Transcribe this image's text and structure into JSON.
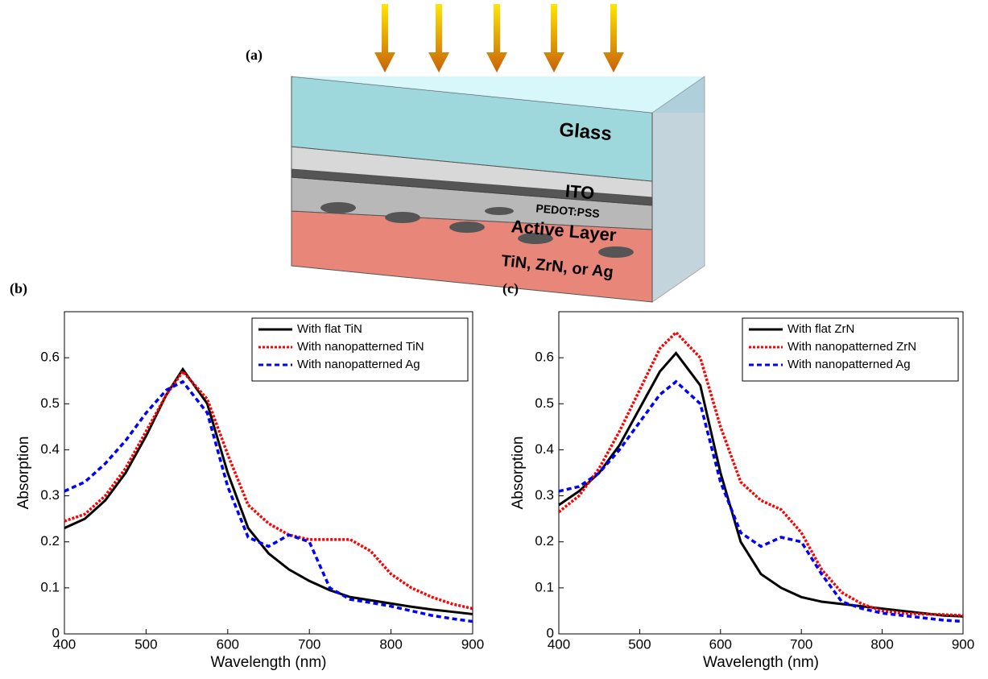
{
  "diagram": {
    "panel_label": "(a)",
    "layers": [
      "Glass",
      "ITO",
      "PEDOT:PSS",
      "Active Layer",
      "TiN, ZrN, or Ag"
    ]
  },
  "chart_data": [
    {
      "type": "line",
      "panel_label": "(b)",
      "x_label": "Wavelength (nm)",
      "y_label": "Absorption",
      "x": [
        400,
        425,
        450,
        475,
        500,
        525,
        545,
        575,
        600,
        625,
        650,
        675,
        700,
        725,
        750,
        775,
        800,
        825,
        850,
        875,
        900
      ],
      "series": [
        {
          "name": "With flat TiN",
          "color": "#000000",
          "linestyle": "solid",
          "values": [
            0.23,
            0.25,
            0.29,
            0.35,
            0.43,
            0.52,
            0.575,
            0.5,
            0.35,
            0.23,
            0.175,
            0.14,
            0.115,
            0.095,
            0.08,
            0.073,
            0.066,
            0.059,
            0.053,
            0.048,
            0.043
          ]
        },
        {
          "name": "With nanopatterned TiN",
          "color": "#ff0000",
          "linestyle": "dotted",
          "values": [
            0.245,
            0.26,
            0.3,
            0.36,
            0.44,
            0.52,
            0.57,
            0.51,
            0.39,
            0.28,
            0.24,
            0.215,
            0.205,
            0.205,
            0.205,
            0.18,
            0.13,
            0.1,
            0.08,
            0.065,
            0.055
          ]
        },
        {
          "name": "With nanopatterned Ag",
          "color": "#0000ff",
          "linestyle": "dashed",
          "values": [
            0.31,
            0.33,
            0.37,
            0.42,
            0.48,
            0.53,
            0.548,
            0.48,
            0.32,
            0.21,
            0.19,
            0.215,
            0.2,
            0.1,
            0.075,
            0.068,
            0.06,
            0.05,
            0.04,
            0.033,
            0.027
          ]
        }
      ],
      "xlim": [
        400,
        900
      ],
      "xticks": [
        400,
        500,
        600,
        700,
        800,
        900
      ],
      "ylim": [
        0,
        0.7
      ],
      "yticks": [
        0,
        0.1,
        0.2,
        0.3,
        0.4,
        0.5,
        0.6
      ],
      "legend": "upper right"
    },
    {
      "type": "line",
      "panel_label": "(c)",
      "x_label": "Wavelength (nm)",
      "y_label": "Absorption",
      "x": [
        400,
        425,
        450,
        475,
        500,
        525,
        545,
        575,
        600,
        625,
        650,
        675,
        700,
        725,
        750,
        775,
        800,
        825,
        850,
        875,
        900
      ],
      "series": [
        {
          "name": "With flat ZrN",
          "color": "#000000",
          "linestyle": "solid",
          "values": [
            0.28,
            0.31,
            0.35,
            0.41,
            0.49,
            0.57,
            0.61,
            0.54,
            0.35,
            0.2,
            0.13,
            0.1,
            0.08,
            0.07,
            0.065,
            0.06,
            0.055,
            0.05,
            0.045,
            0.04,
            0.038
          ]
        },
        {
          "name": "With nanopatterned ZrN",
          "color": "#ff0000",
          "linestyle": "dotted",
          "values": [
            0.265,
            0.3,
            0.36,
            0.44,
            0.53,
            0.62,
            0.655,
            0.6,
            0.45,
            0.33,
            0.29,
            0.27,
            0.22,
            0.14,
            0.09,
            0.065,
            0.05,
            0.045,
            0.043,
            0.042,
            0.04
          ]
        },
        {
          "name": "With nanopatterned Ag",
          "color": "#0000ff",
          "linestyle": "dashed",
          "values": [
            0.31,
            0.32,
            0.35,
            0.4,
            0.46,
            0.52,
            0.548,
            0.5,
            0.33,
            0.22,
            0.19,
            0.21,
            0.2,
            0.13,
            0.07,
            0.055,
            0.045,
            0.04,
            0.035,
            0.03,
            0.027
          ]
        }
      ],
      "xlim": [
        400,
        900
      ],
      "xticks": [
        400,
        500,
        600,
        700,
        800,
        900
      ],
      "ylim": [
        0,
        0.7
      ],
      "yticks": [
        0,
        0.1,
        0.2,
        0.3,
        0.4,
        0.5,
        0.6
      ],
      "legend": "upper right"
    }
  ]
}
